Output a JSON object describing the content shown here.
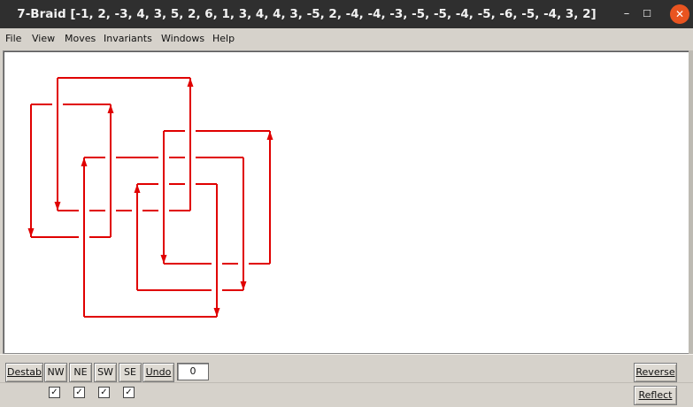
{
  "window": {
    "title": "7-Braid [-1, 2, -3, 4, 3, 5, 2, 6, 1, 3, 4, 4, 3, -5, 2, -4, -4, -3, -5, -5, -4, -5, -6, -5, -4, 3, 2]",
    "minimize_glyph": "–",
    "maximize_glyph": "☐",
    "close_glyph": "✕"
  },
  "menu": {
    "file": "File",
    "view": "View",
    "moves": "Moves",
    "invariants": "Invariants",
    "windows": "Windows",
    "help": "Help"
  },
  "diagram": {
    "strand_color": "#e00000",
    "icon": "braid-diagram"
  },
  "toolbar": {
    "destab": "Destab",
    "nw": "NW",
    "ne": "NE",
    "sw": "SW",
    "se": "SE",
    "undo": "Undo",
    "undo_count": "0",
    "reverse": "Reverse",
    "reflect": "Reflect",
    "checkbox_mark": "✓"
  }
}
